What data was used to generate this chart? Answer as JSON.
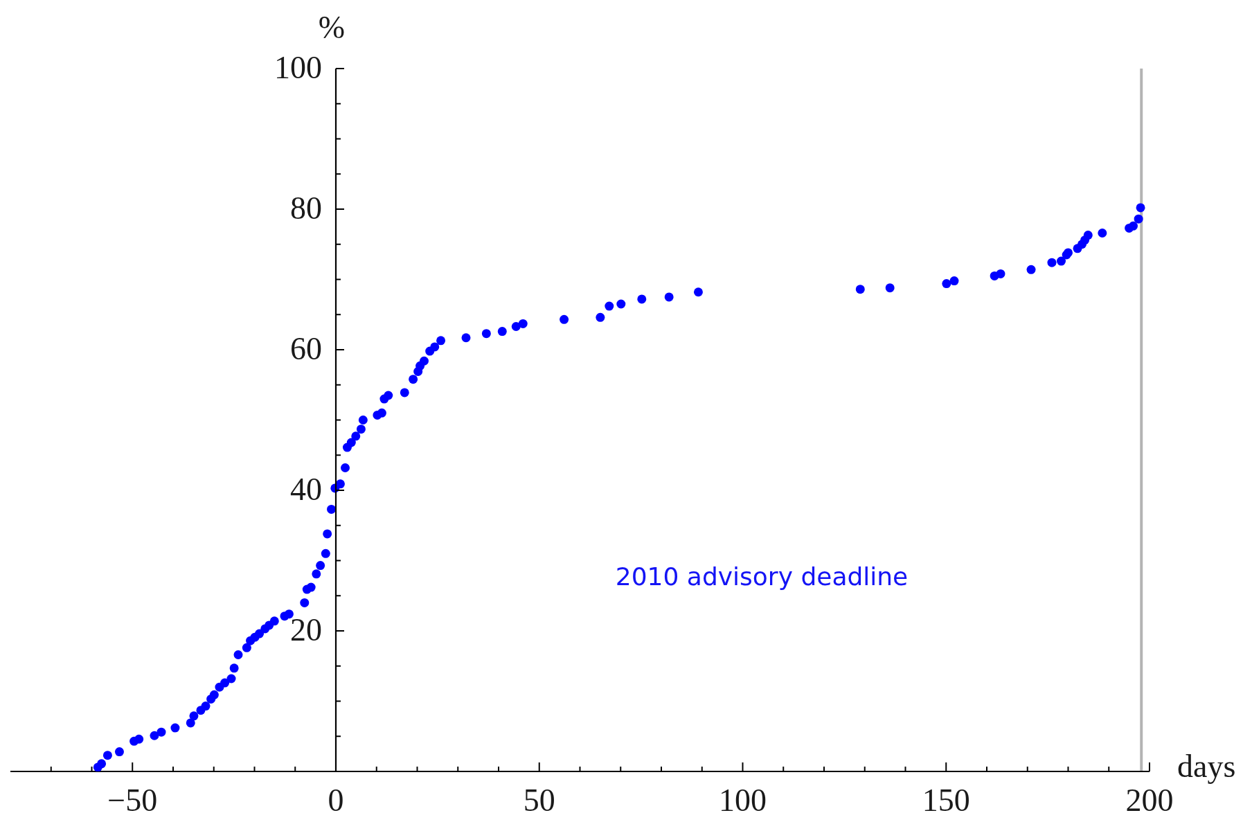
{
  "chart_data": {
    "type": "scatter",
    "xlabel": "days",
    "ylabel": "%",
    "annotations": [
      "2010 advisory deadline"
    ],
    "x": [
      -58.5,
      -57.6,
      -56.1,
      -53.2,
      -49.6,
      -48.4,
      -44.6,
      -42.9,
      -39.5,
      -35.7,
      -34.9,
      -33.2,
      -32.0,
      -30.7,
      -29.9,
      -28.6,
      -27.3,
      -25.7,
      -25.0,
      -24.0,
      -21.9,
      -21.0,
      -19.9,
      -18.8,
      -17.4,
      -16.4,
      -15.1,
      -12.6,
      -11.5,
      -7.7,
      -7.1,
      -6.1,
      -4.8,
      -3.8,
      -2.5,
      -2.1,
      -1.1,
      -0.2,
      1.1,
      2.3,
      2.8,
      3.8,
      4.9,
      6.2,
      6.7,
      10.2,
      11.3,
      11.9,
      12.9,
      16.9,
      19.0,
      20.2,
      20.7,
      21.7,
      23.1,
      24.3,
      25.8,
      32.0,
      37.0,
      40.9,
      44.3,
      46.0,
      56.1,
      65.0,
      67.2,
      70.1,
      75.2,
      81.9,
      89.1,
      128.9,
      136.2,
      150.1,
      152.0,
      161.9,
      163.4,
      170.9,
      176.0,
      178.3,
      179.6,
      180.0,
      182.3,
      183.4,
      184.1,
      184.9,
      188.4,
      195.0,
      196.0,
      197.3,
      197.8
    ],
    "values": [
      0.6,
      1.1,
      2.3,
      2.8,
      4.3,
      4.6,
      5.1,
      5.6,
      6.2,
      6.9,
      7.9,
      8.7,
      9.3,
      10.3,
      10.9,
      12.0,
      12.6,
      13.2,
      14.7,
      16.6,
      17.6,
      18.6,
      19.1,
      19.6,
      20.3,
      20.8,
      21.4,
      22.1,
      22.4,
      24.0,
      25.9,
      26.2,
      28.1,
      29.3,
      31.0,
      33.8,
      37.3,
      40.3,
      40.9,
      43.2,
      46.1,
      46.8,
      47.7,
      48.7,
      50.0,
      50.7,
      51.0,
      53.0,
      53.5,
      53.9,
      55.8,
      56.9,
      57.7,
      58.4,
      59.8,
      60.4,
      61.3,
      61.7,
      62.3,
      62.6,
      63.3,
      63.7,
      64.3,
      64.6,
      66.2,
      66.5,
      67.2,
      67.5,
      68.2,
      68.6,
      68.8,
      69.4,
      69.8,
      70.5,
      70.8,
      71.4,
      72.4,
      72.6,
      73.5,
      73.8,
      74.4,
      75.0,
      75.6,
      76.3,
      76.6,
      77.3,
      77.6,
      78.6,
      80.2
    ],
    "color": "#0000ff",
    "marker": "circle",
    "grid": false,
    "xlim": [
      -80,
      200
    ],
    "ylim": [
      0,
      100
    ],
    "xticks": [
      {
        "value": -70,
        "label": null
      },
      {
        "value": -60,
        "label": null
      },
      {
        "value": -50,
        "label": "−50"
      },
      {
        "value": -40,
        "label": null
      },
      {
        "value": -30,
        "label": null
      },
      {
        "value": -20,
        "label": null
      },
      {
        "value": -10,
        "label": null
      },
      0,
      {
        "value": 10,
        "label": null
      },
      {
        "value": 20,
        "label": null
      },
      {
        "value": 30,
        "label": null
      },
      {
        "value": 40,
        "label": null
      },
      50,
      {
        "value": 60,
        "label": null
      },
      {
        "value": 70,
        "label": null
      },
      {
        "value": 80,
        "label": null
      },
      {
        "value": 90,
        "label": null
      },
      100,
      {
        "value": 110,
        "label": null
      },
      {
        "value": 120,
        "label": null
      },
      {
        "value": 130,
        "label": null
      },
      {
        "value": 140,
        "label": null
      },
      150,
      {
        "value": 160,
        "label": null
      },
      {
        "value": 170,
        "label": null
      },
      {
        "value": 180,
        "label": null
      },
      {
        "value": 190,
        "label": null
      },
      200
    ],
    "yticks": [
      {
        "value": 5,
        "label": null
      },
      {
        "value": 10,
        "label": null
      },
      {
        "value": 15,
        "label": null
      },
      20,
      {
        "value": 25,
        "label": null
      },
      {
        "value": 30,
        "label": null
      },
      {
        "value": 35,
        "label": null
      },
      40,
      {
        "value": 45,
        "label": null
      },
      {
        "value": 50,
        "label": null
      },
      {
        "value": 55,
        "label": null
      },
      60,
      {
        "value": 65,
        "label": null
      },
      {
        "value": 70,
        "label": null
      },
      {
        "value": 75,
        "label": null
      },
      80,
      {
        "value": 85,
        "label": null
      },
      {
        "value": 90,
        "label": null
      },
      {
        "value": 95,
        "label": null
      },
      100
    ],
    "ref_lines": [
      {
        "axis": "x",
        "value": 198,
        "color": "#b4b4b4"
      }
    ]
  }
}
